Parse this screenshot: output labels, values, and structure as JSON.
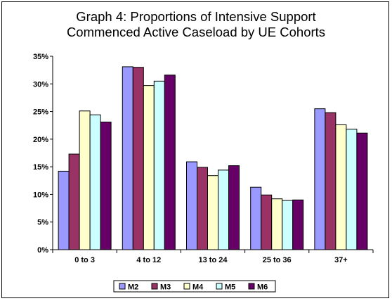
{
  "chart_data": {
    "type": "bar",
    "title_lines": [
      "Graph 4: Proportions of Intensive Support",
      "Commenced Active Caseload by UE Cohorts"
    ],
    "categories": [
      "0 to 3",
      "4 to 12",
      "13 to 24",
      "25 to 36",
      "37+"
    ],
    "series": [
      {
        "name": "M2",
        "color": "#9999FF",
        "values": [
          14.2,
          33.1,
          15.9,
          11.3,
          25.5
        ]
      },
      {
        "name": "M3",
        "color": "#993366",
        "values": [
          17.3,
          33.0,
          14.9,
          9.9,
          24.8
        ]
      },
      {
        "name": "M4",
        "color": "#FFFFCC",
        "values": [
          25.1,
          29.7,
          13.4,
          9.2,
          22.6
        ]
      },
      {
        "name": "M5",
        "color": "#CCFFFF",
        "values": [
          24.4,
          30.5,
          14.4,
          8.9,
          21.8
        ]
      },
      {
        "name": "M6",
        "color": "#660066",
        "values": [
          23.1,
          31.6,
          15.2,
          9.0,
          21.1
        ]
      }
    ],
    "ylim": [
      0,
      35
    ],
    "yticks": [
      "0%",
      "5%",
      "10%",
      "15%",
      "20%",
      "25%",
      "30%",
      "35%"
    ],
    "y_tick_values": [
      0,
      5,
      10,
      15,
      20,
      25,
      30,
      35
    ],
    "legend_position": "bottom",
    "grid": false
  }
}
